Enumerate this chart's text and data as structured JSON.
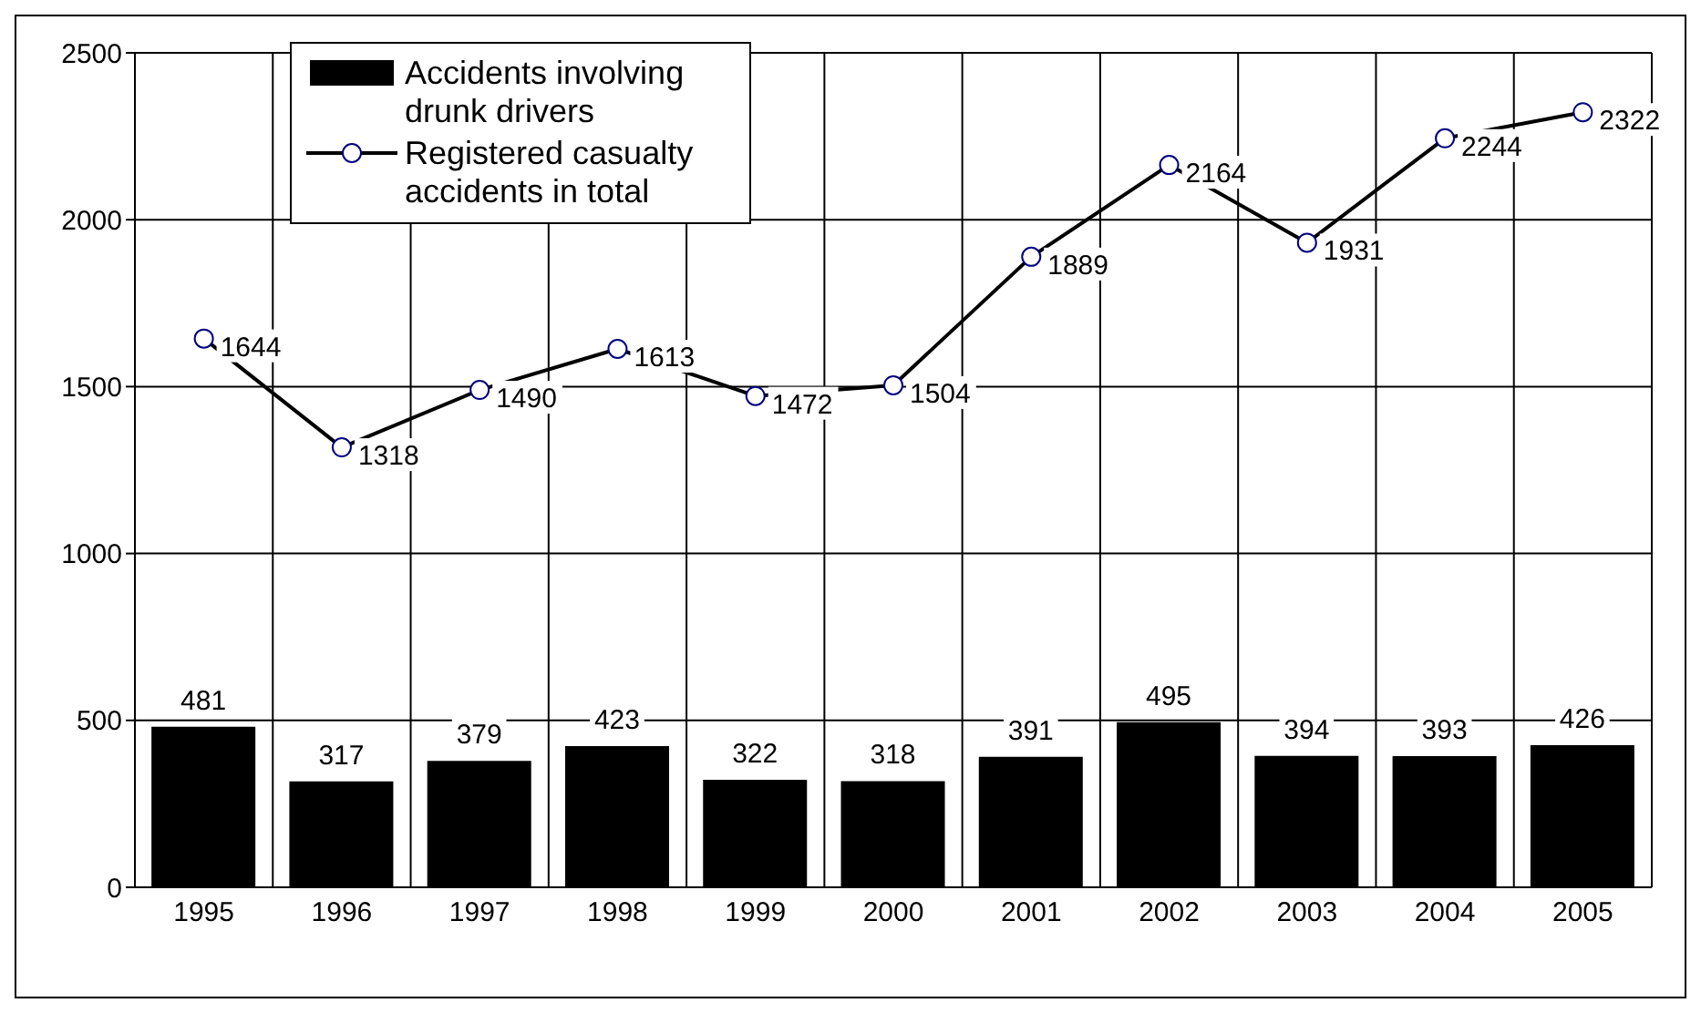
{
  "chart_data": {
    "type": "bar",
    "categories": [
      "1995",
      "1996",
      "1997",
      "1998",
      "1999",
      "2000",
      "2001",
      "2002",
      "2003",
      "2004",
      "2005"
    ],
    "series": [
      {
        "name": "Accidents involving drunk drivers",
        "color": "#000000",
        "values": [
          481,
          317,
          379,
          423,
          322,
          318,
          391,
          495,
          394,
          393,
          426
        ]
      },
      {
        "name": "Registered casualty accidents in total",
        "type": "line",
        "color": "#000000",
        "values": [
          1644,
          1318,
          1490,
          1613,
          1472,
          1504,
          1889,
          2164,
          1931,
          2244,
          2322
        ]
      }
    ],
    "ylim": [
      0,
      2500
    ],
    "yticks": [
      0,
      500,
      1000,
      1500,
      2000,
      2500
    ],
    "grid": true,
    "legend": "top left",
    "marker": "circle",
    "line_style": "solid",
    "data_labels": true
  }
}
